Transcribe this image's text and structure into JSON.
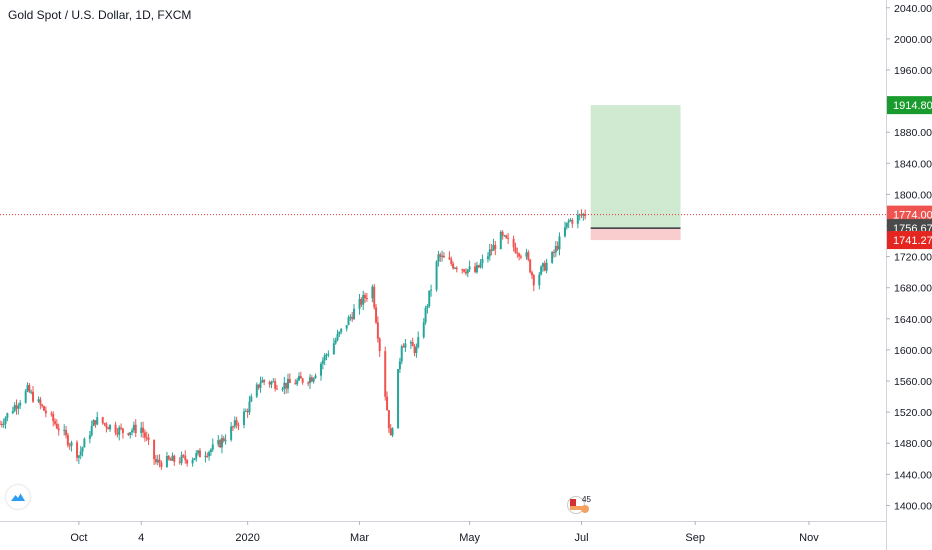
{
  "header": {
    "title": "Gold Spot / U.S. Dollar, 1D, FXCM"
  },
  "badge": {
    "count": "45"
  },
  "icons": {
    "logo": "tradingview-logo-icon",
    "badge": "event-flag-badge-icon"
  },
  "colors": {
    "up": "#26a69a",
    "down": "#ef5350",
    "target_zone": "#c8e6c9",
    "stop_zone": "#f8c8c8",
    "price_line": "#e53935",
    "grid": "#f0f3fa",
    "axis_text": "#131722"
  },
  "chart_data": {
    "type": "candlestick",
    "title": "Gold Spot / U.S. Dollar, 1D, FXCM",
    "symbol": "XAUUSD",
    "interval": "1D",
    "ylim": [
      1380,
      2050
    ],
    "y_ticks": [
      1400,
      1440,
      1480,
      1520,
      1560,
      1600,
      1640,
      1680,
      1720,
      1760,
      1800,
      1840,
      1880,
      1920,
      1960,
      2000,
      2040
    ],
    "y_tick_labels": [
      "1400.00",
      "1440.00",
      "1480.00",
      "1520.00",
      "1560.00",
      "1600.00",
      "1640.00",
      "1680.00",
      "1720.00",
      "1760.00",
      "1800.00",
      "1840.00",
      "1880.00",
      "1920.00",
      "1960.00",
      "2000.00",
      "2040.00"
    ],
    "x_labels": [
      {
        "label": "Oct",
        "date": "2019-10-01"
      },
      {
        "label": "4",
        "date": "2019-11-04"
      },
      {
        "label": "2020",
        "date": "2020-01-01"
      },
      {
        "label": "Mar",
        "date": "2020-03-02"
      },
      {
        "label": "May",
        "date": "2020-05-01"
      },
      {
        "label": "Jul",
        "date": "2020-07-01"
      },
      {
        "label": "Sep",
        "date": "2020-09-01"
      },
      {
        "label": "Nov",
        "date": "2020-11-02"
      }
    ],
    "x_range": [
      "2019-08-19",
      "2020-12-14"
    ],
    "path_points": [
      [
        "2019-08-19",
        1505
      ],
      [
        "2019-09-03",
        1548
      ],
      [
        "2019-09-20",
        1500
      ],
      [
        "2019-10-01",
        1465
      ],
      [
        "2019-10-10",
        1510
      ],
      [
        "2019-10-25",
        1495
      ],
      [
        "2019-11-04",
        1500
      ],
      [
        "2019-11-12",
        1455
      ],
      [
        "2019-11-30",
        1460
      ],
      [
        "2019-12-15",
        1475
      ],
      [
        "2019-12-31",
        1520
      ],
      [
        "2020-01-08",
        1560
      ],
      [
        "2020-01-22",
        1555
      ],
      [
        "2020-02-05",
        1565
      ],
      [
        "2020-02-20",
        1620
      ],
      [
        "2020-02-28",
        1650
      ],
      [
        "2020-03-09",
        1680
      ],
      [
        "2020-03-19",
        1485
      ],
      [
        "2020-03-25",
        1610
      ],
      [
        "2020-04-02",
        1600
      ],
      [
        "2020-04-14",
        1720
      ],
      [
        "2020-04-22",
        1710
      ],
      [
        "2020-05-04",
        1700
      ],
      [
        "2020-05-18",
        1745
      ],
      [
        "2020-06-01",
        1720
      ],
      [
        "2020-06-05",
        1690
      ],
      [
        "2020-06-15",
        1720
      ],
      [
        "2020-06-24",
        1765
      ],
      [
        "2020-07-03",
        1775
      ]
    ],
    "last_price": 1774.0,
    "last_price_label": "1774.00",
    "position": {
      "start": "2020-07-06",
      "end": "2020-08-24",
      "entry": 1756.67,
      "entry_label": "1756.67",
      "target": 1914.8,
      "target_label": "1914.80",
      "stop": 1741.27,
      "stop_label": "1741.27"
    },
    "grid": false,
    "legend": "none"
  }
}
